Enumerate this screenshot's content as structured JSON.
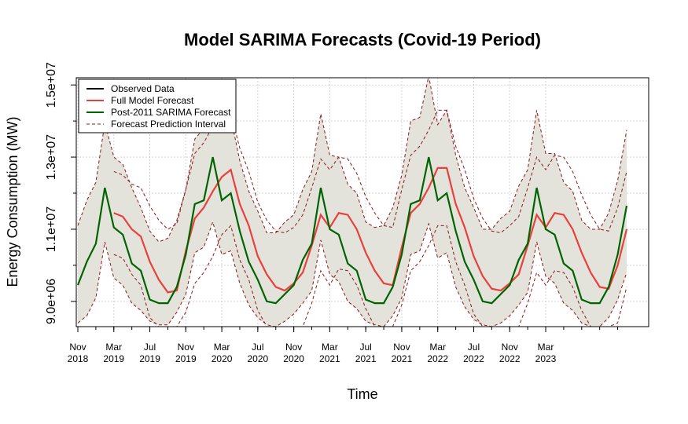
{
  "chart_data": {
    "type": "line",
    "title": "Model SARIMA Forecasts (Covid-19 Period)",
    "xlabel": "Time",
    "ylabel": "Energy Consumption (MW)",
    "xlim": [
      "2018-11",
      "2023-12"
    ],
    "ylim": [
      8300000,
      15200000
    ],
    "y_ticks": [
      9000000,
      11000000,
      13000000,
      15000000
    ],
    "y_tick_labels": [
      "9.0e+06",
      "1.1e+07",
      "1.3e+07",
      "1.5e+07"
    ],
    "x_ticks": [
      {
        "month": "Nov",
        "year": "2018"
      },
      {
        "month": "Mar",
        "year": "2019"
      },
      {
        "month": "Jul",
        "year": "2019"
      },
      {
        "month": "Nov",
        "year": "2019"
      },
      {
        "month": "Mar",
        "year": "2020"
      },
      {
        "month": "Jul",
        "year": "2020"
      },
      {
        "month": "Nov",
        "year": "2020"
      },
      {
        "month": "Mar",
        "year": "2021"
      },
      {
        "month": "Jul",
        "year": "2021"
      },
      {
        "month": "Nov",
        "year": "2021"
      },
      {
        "month": "Mar",
        "year": "2022"
      },
      {
        "month": "Jul",
        "year": "2022"
      },
      {
        "month": "Nov",
        "year": "2022"
      },
      {
        "month": "Mar",
        "year": "2023"
      }
    ],
    "grid": true,
    "legend_position": "top-left",
    "legend": [
      {
        "label": "Observed Data",
        "color": "#000000",
        "style": "solid"
      },
      {
        "label": "Full Model Forecast",
        "color": "#e8413c",
        "style": "solid"
      },
      {
        "label": "Post-2011 SARIMA Forecast",
        "color": "#006400",
        "style": "solid"
      },
      {
        "label": "Forecast Prediction Interval",
        "color": "#8b1a1a",
        "style": "dashed"
      }
    ],
    "band_color": "#e3e3dc",
    "months": [
      "2018-11",
      "2018-12",
      "2019-01",
      "2019-02",
      "2019-03",
      "2019-04",
      "2019-05",
      "2019-06",
      "2019-07",
      "2019-08",
      "2019-09",
      "2019-10",
      "2019-11",
      "2019-12",
      "2020-01",
      "2020-02",
      "2020-03",
      "2020-04",
      "2020-05",
      "2020-06",
      "2020-07",
      "2020-08",
      "2020-09",
      "2020-10",
      "2020-11",
      "2020-12",
      "2021-01",
      "2021-02",
      "2021-03",
      "2021-04",
      "2021-05",
      "2021-06",
      "2021-07",
      "2021-08",
      "2021-09",
      "2021-10",
      "2021-11",
      "2021-12",
      "2022-01",
      "2022-02",
      "2022-03",
      "2022-04",
      "2022-05",
      "2022-06",
      "2022-07",
      "2022-08",
      "2022-09",
      "2022-10",
      "2022-11",
      "2022-12",
      "2023-01",
      "2023-02",
      "2023-03",
      "2023-04",
      "2023-05",
      "2023-06",
      "2023-07",
      "2023-08",
      "2023-09",
      "2023-10",
      "2023-11",
      "2023-12"
    ],
    "series": [
      {
        "name": "Post-2011 SARIMA Forecast",
        "color": "#006400",
        "values": [
          9450000,
          10100000,
          10600000,
          12150000,
          11050000,
          10850000,
          10050000,
          9850000,
          9050000,
          8950000,
          8950000,
          9400000,
          10300000,
          11700000,
          11800000,
          13000000,
          11800000,
          12000000,
          10950000,
          10100000,
          9600000,
          9000000,
          8950000,
          9200000,
          9450000,
          10150000,
          10600000,
          12150000,
          11000000,
          10850000,
          10050000,
          9850000,
          9050000,
          8950000,
          8950000,
          9400000,
          10300000,
          11700000,
          11800000,
          13000000,
          11800000,
          12000000,
          10950000,
          10100000,
          9600000,
          9000000,
          8950000,
          9200000,
          9450000,
          10150000,
          10600000,
          12150000,
          11000000,
          10850000,
          10050000,
          9850000,
          9050000,
          8950000,
          8950000,
          9400000,
          10300000,
          11650000
        ]
      },
      {
        "name": "Full Model Forecast",
        "color": "#e8413c",
        "values": [
          null,
          null,
          null,
          null,
          11450000,
          11350000,
          11000000,
          10800000,
          10100000,
          9600000,
          9250000,
          9300000,
          10400000,
          11300000,
          11600000,
          12050000,
          12450000,
          12650000,
          11700000,
          11100000,
          10250000,
          9750000,
          9400000,
          9300000,
          9500000,
          9800000,
          10550000,
          11400000,
          11050000,
          11450000,
          11400000,
          11000000,
          10350000,
          9850000,
          9500000,
          9450000,
          10500000,
          11450000,
          11700000,
          12150000,
          12700000,
          12700000,
          11700000,
          11050000,
          10250000,
          9700000,
          9350000,
          9300000,
          9500000,
          9750000,
          10550000,
          11400000,
          11050000,
          11450000,
          11400000,
          11000000,
          10350000,
          9800000,
          9400000,
          9350000,
          10000000,
          11000000
        ]
      },
      {
        "name": "Upper Interval",
        "color": "#8b1a1a",
        "style": "dashed",
        "values": [
          11100000,
          11800000,
          12300000,
          13950000,
          13000000,
          12800000,
          12150000,
          11600000,
          10950000,
          10650000,
          10750000,
          11250000,
          12100000,
          13500000,
          13800000,
          14900000,
          13700000,
          14100000,
          12900000,
          12050000,
          11500000,
          10900000,
          10900000,
          11200000,
          11400000,
          12100000,
          12600000,
          14200000,
          13050000,
          13000000,
          12250000,
          12000000,
          11200000,
          11050000,
          11100000,
          11600000,
          12500000,
          14000000,
          14100000,
          15250000,
          13900000,
          14300000,
          13050000,
          12150000,
          11600000,
          11000000,
          11000000,
          11300000,
          11500000,
          12200000,
          12650000,
          14300000,
          13100000,
          13100000,
          12300000,
          12050000,
          11250000,
          11000000,
          11000000,
          11450000,
          12350000,
          13750000
        ]
      },
      {
        "name": "Lower Interval",
        "color": "#8b1a1a",
        "style": "dashed",
        "values": [
          8400000,
          8600000,
          9100000,
          10650000,
          9650000,
          9450000,
          8950000,
          8750000,
          8450000,
          8350000,
          8350000,
          8700000,
          9200000,
          10350000,
          10500000,
          11200000,
          10300000,
          10400000,
          9500000,
          8900000,
          8550000,
          8350000,
          8300000,
          8450000,
          8650000,
          8950000,
          9300000,
          10700000,
          9750000,
          9550000,
          9000000,
          8800000,
          8450000,
          8350000,
          8300000,
          8600000,
          9100000,
          10300000,
          10400000,
          11150000,
          10200000,
          10350000,
          9400000,
          8850000,
          8500000,
          8350000,
          8300000,
          8400000,
          8600000,
          8900000,
          9250000,
          10650000,
          9700000,
          9500000,
          8950000,
          8750000,
          8400000,
          8300000,
          8300000,
          8550000,
          9050000,
          9800000
        ]
      },
      {
        "name": "Upper Interval (Full Model)",
        "color": "#8b1a1a",
        "style": "dashed",
        "values": [
          null,
          null,
          null,
          null,
          12600000,
          12500000,
          12250000,
          12150000,
          11650000,
          11250000,
          11000000,
          11150000,
          12100000,
          13100000,
          13400000,
          13850000,
          14050000,
          14200000,
          13250000,
          12600000,
          11750000,
          11250000,
          10950000,
          10900000,
          11050000,
          11400000,
          12150000,
          12950000,
          12650000,
          13000000,
          12950000,
          12550000,
          11900000,
          11450000,
          11100000,
          11050000,
          12100000,
          13050000,
          13300000,
          13750000,
          14300000,
          14300000,
          13300000,
          12650000,
          11850000,
          11300000,
          10950000,
          10900000,
          11100000,
          11350000,
          12150000,
          13000000,
          12650000,
          13050000,
          13000000,
          12600000,
          11950000,
          11400000,
          11000000,
          10950000,
          11600000,
          12600000
        ]
      },
      {
        "name": "Lower Interval (Full Model)",
        "color": "#8b1a1a",
        "style": "dashed",
        "values": [
          null,
          null,
          null,
          null,
          10300000,
          10200000,
          9750000,
          9450000,
          8550000,
          8300000,
          8300000,
          8300000,
          8700000,
          9500000,
          9800000,
          10250000,
          10850000,
          11100000,
          10150000,
          9600000,
          8750000,
          8300000,
          8300000,
          8300000,
          8300000,
          8300000,
          8950000,
          9850000,
          9450000,
          9900000,
          9850000,
          9450000,
          8800000,
          8300000,
          8300000,
          8300000,
          8900000,
          9850000,
          10100000,
          10550000,
          11100000,
          11100000,
          10100000,
          9450000,
          8650000,
          8300000,
          8300000,
          8300000,
          8300000,
          8300000,
          8950000,
          9800000,
          9450000,
          9850000,
          9800000,
          9400000,
          8750000,
          8300000,
          8300000,
          8300000,
          8400000,
          9400000
        ]
      }
    ]
  }
}
